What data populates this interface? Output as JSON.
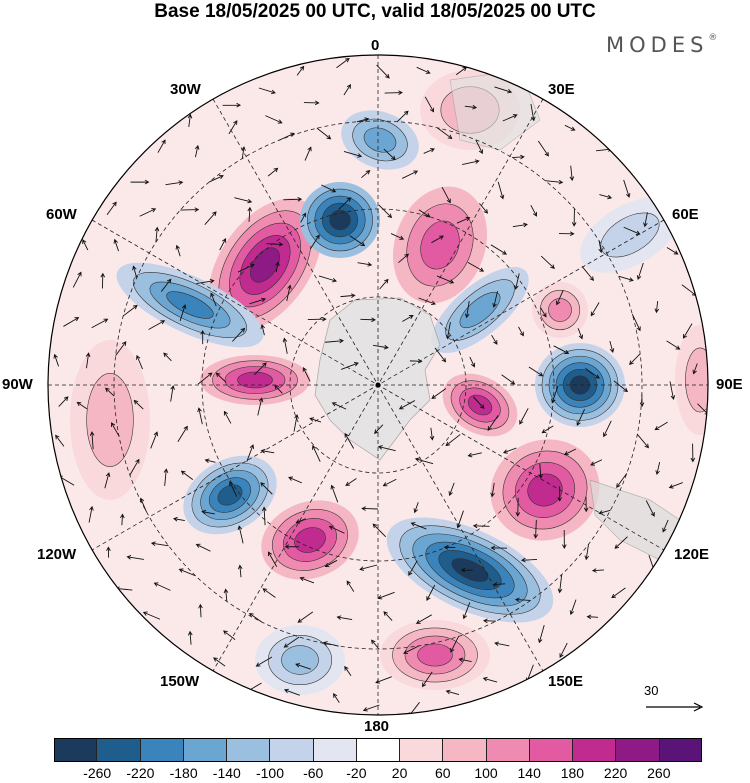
{
  "title": "Base 18/05/2025 00 UTC, valid 18/05/2025 00 UTC",
  "brand": {
    "name": "MODES",
    "mark": "®"
  },
  "longitude_labels": {
    "top": "0",
    "bottom": "180",
    "left": "90W",
    "right": "90E",
    "nw1": "30W",
    "nw2": "60W",
    "ne1": "30E",
    "ne2": "60E",
    "sw1": "120W",
    "sw2": "150W",
    "se1": "120E",
    "se2": "150E"
  },
  "colorbar": {
    "levels": [
      "-260",
      "-220",
      "-180",
      "-140",
      "-100",
      "-60",
      "-20",
      "20",
      "60",
      "100",
      "140",
      "180",
      "220",
      "260"
    ],
    "colors": [
      "#1b3a5c",
      "#1f5d8c",
      "#3a84bb",
      "#6ba5d2",
      "#9bbfdf",
      "#c4d3e9",
      "#e3e6f0",
      "#ffffff",
      "#f9d9dc",
      "#f6b7c4",
      "#ef8bb0",
      "#e25aa2",
      "#c12a8f",
      "#8e1a85",
      "#5a1478"
    ]
  },
  "wind_reference": {
    "value": "30"
  }
}
